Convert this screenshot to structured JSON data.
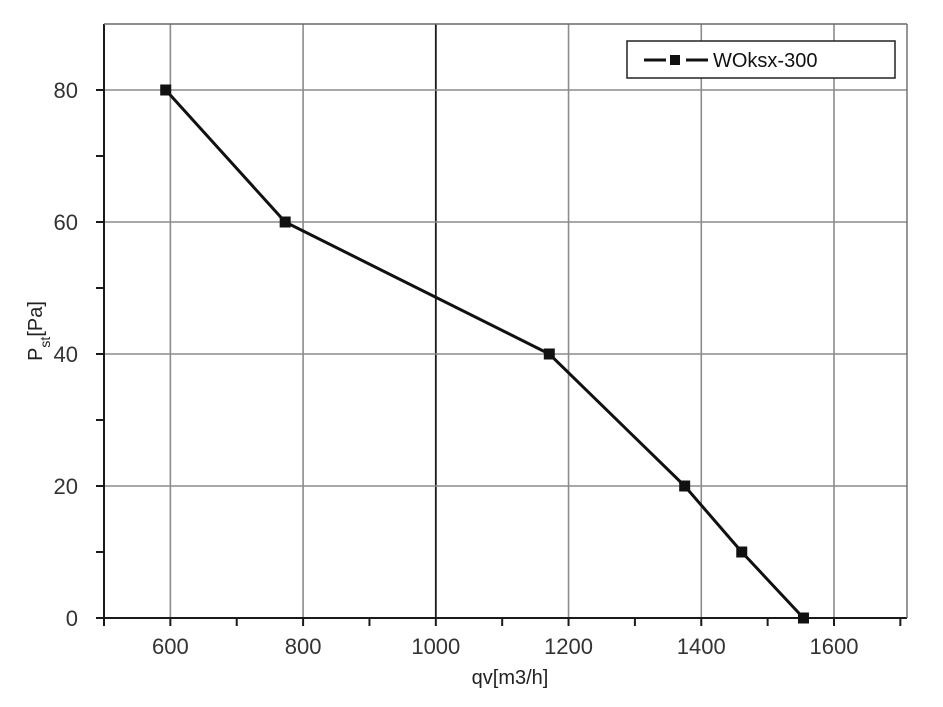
{
  "chart_data": {
    "type": "line",
    "xlabel": "qv[m3/h]",
    "ylabel_main": "P",
    "ylabel_sub": "st",
    "ylabel_tail": "[Pa]",
    "xlim": [
      500,
      1710
    ],
    "ylim": [
      0,
      90
    ],
    "xticks": [
      600,
      800,
      1000,
      1200,
      1400,
      1600
    ],
    "yticks": [
      0,
      20,
      40,
      60,
      80
    ],
    "xtick_labels": [
      "600",
      "800",
      "1000",
      "1200",
      "1400",
      "1600"
    ],
    "ytick_labels": [
      "0",
      "20",
      "40",
      "60",
      "80"
    ],
    "grid": true,
    "legend_position": "top-right",
    "series": [
      {
        "name": "WOksx-300",
        "color": "#111111",
        "x": [
          593,
          773,
          1171,
          1375,
          1461,
          1554
        ],
        "y": [
          80,
          60,
          40,
          20,
          10,
          0
        ]
      }
    ]
  }
}
